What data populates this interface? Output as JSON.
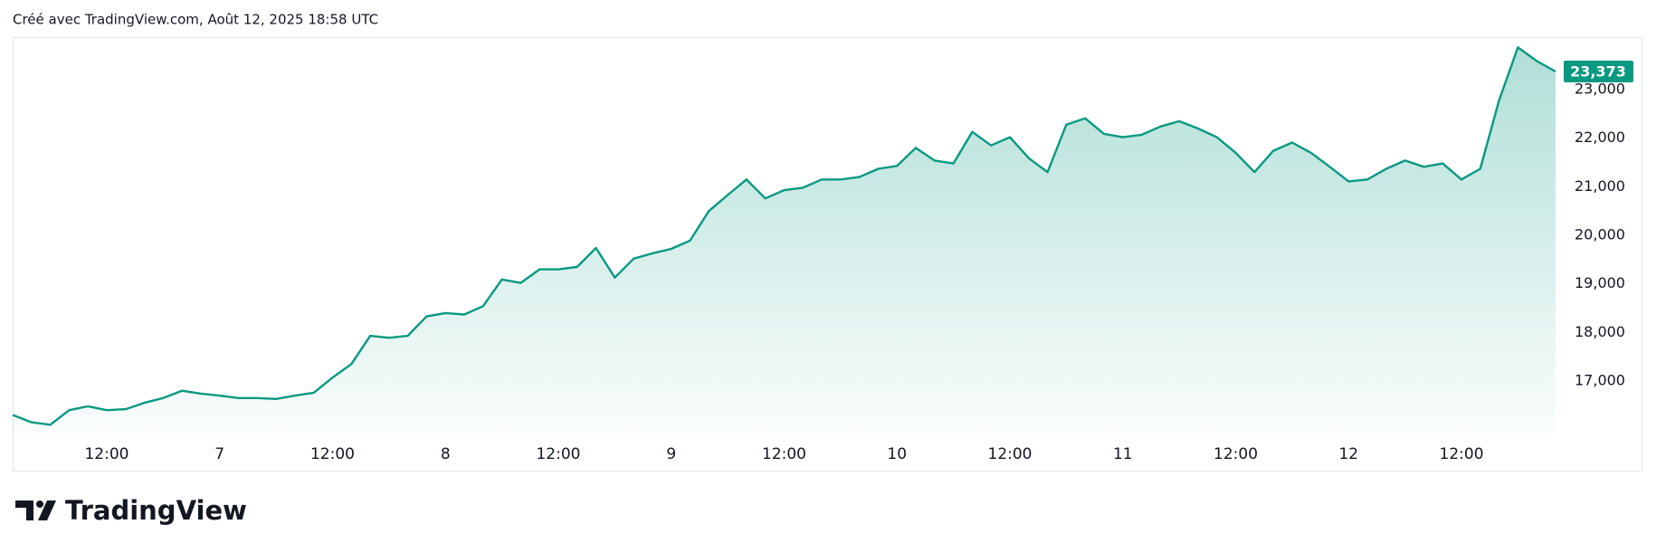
{
  "header": {
    "caption": "Créé avec TradingView.com, Août 12, 2025 18:58 UTC"
  },
  "footer": {
    "brand": "TradingView"
  },
  "chart_data": {
    "type": "area",
    "color": "#089981",
    "grid": false,
    "values": [
      16300,
      16150,
      16100,
      16400,
      16480,
      16400,
      16420,
      16550,
      16650,
      16800,
      16740,
      16700,
      16650,
      16650,
      16630,
      16700,
      16760,
      17070,
      17350,
      17930,
      17890,
      17930,
      18330,
      18400,
      18370,
      18540,
      19090,
      19020,
      19300,
      19300,
      19350,
      19740,
      19130,
      19520,
      19630,
      19720,
      19890,
      20500,
      20830,
      21150,
      20760,
      20930,
      20980,
      21150,
      21150,
      21200,
      21370,
      21430,
      21800,
      21540,
      21480,
      22130,
      21850,
      22020,
      21590,
      21300,
      22280,
      22410,
      22090,
      22020,
      22070,
      22240,
      22350,
      22200,
      22020,
      21700,
      21300,
      21740,
      21910,
      21700,
      21410,
      21110,
      21150,
      21370,
      21540,
      21410,
      21480,
      21150,
      21370,
      22780,
      23870,
      23590,
      23373
    ],
    "last_price": {
      "value": 23373,
      "label": "23,373"
    },
    "xlim": [
      0,
      82
    ],
    "xticks": [
      {
        "value": 5,
        "label": "12:00"
      },
      {
        "value": 11,
        "label": "7"
      },
      {
        "value": 17,
        "label": "12:00"
      },
      {
        "value": 23,
        "label": "8"
      },
      {
        "value": 29,
        "label": "12:00"
      },
      {
        "value": 35,
        "label": "9"
      },
      {
        "value": 41,
        "label": "12:00"
      },
      {
        "value": 47,
        "label": "10"
      },
      {
        "value": 53,
        "label": "12:00"
      },
      {
        "value": 59,
        "label": "11"
      },
      {
        "value": 65,
        "label": "12:00"
      },
      {
        "value": 71,
        "label": "12"
      },
      {
        "value": 77,
        "label": "12:00"
      }
    ],
    "ylim": [
      15900,
      24100
    ],
    "yticks": [
      {
        "value": 17000,
        "label": "17,000"
      },
      {
        "value": 18000,
        "label": "18,000"
      },
      {
        "value": 19000,
        "label": "19,000"
      },
      {
        "value": 20000,
        "label": "20,000"
      },
      {
        "value": 21000,
        "label": "21,000"
      },
      {
        "value": 22000,
        "label": "22,000"
      },
      {
        "value": 23000,
        "label": "23,000"
      }
    ]
  }
}
